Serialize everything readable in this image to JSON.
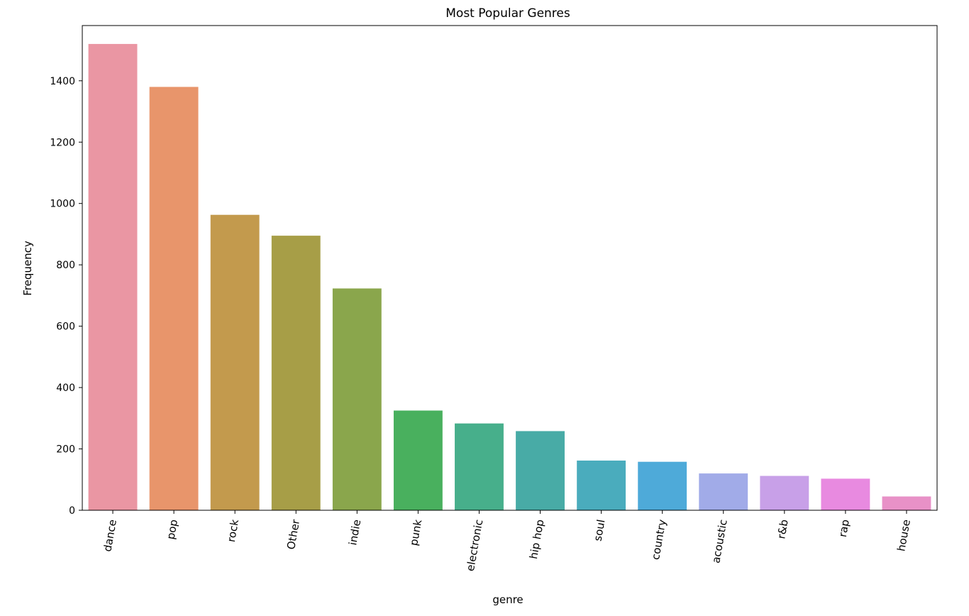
{
  "chart_data": {
    "type": "bar",
    "title": "Most Popular Genres",
    "xlabel": "genre",
    "ylabel": "Frequency",
    "categories": [
      "dance",
      "pop",
      "rock",
      "Other",
      "indie",
      "punk",
      "electronic",
      "hip hop",
      "soul",
      "country",
      "acoustic",
      "r&b",
      "rap",
      "house"
    ],
    "values": [
      1520,
      1380,
      963,
      895,
      723,
      325,
      283,
      258,
      162,
      158,
      120,
      112,
      103,
      45
    ],
    "colors": [
      "#ea96a3",
      "#e8956b",
      "#c39a4d",
      "#a79e47",
      "#8aa64c",
      "#49b05e",
      "#47af8b",
      "#48aba6",
      "#4aacbd",
      "#4eaad9",
      "#a1abe8",
      "#c8a0e8",
      "#e88ae0",
      "#e891c7"
    ],
    "ylim": [
      0,
      1580
    ],
    "yticks": [
      0,
      200,
      400,
      600,
      800,
      1000,
      1200,
      1400
    ],
    "grid": false,
    "legend": "none"
  }
}
